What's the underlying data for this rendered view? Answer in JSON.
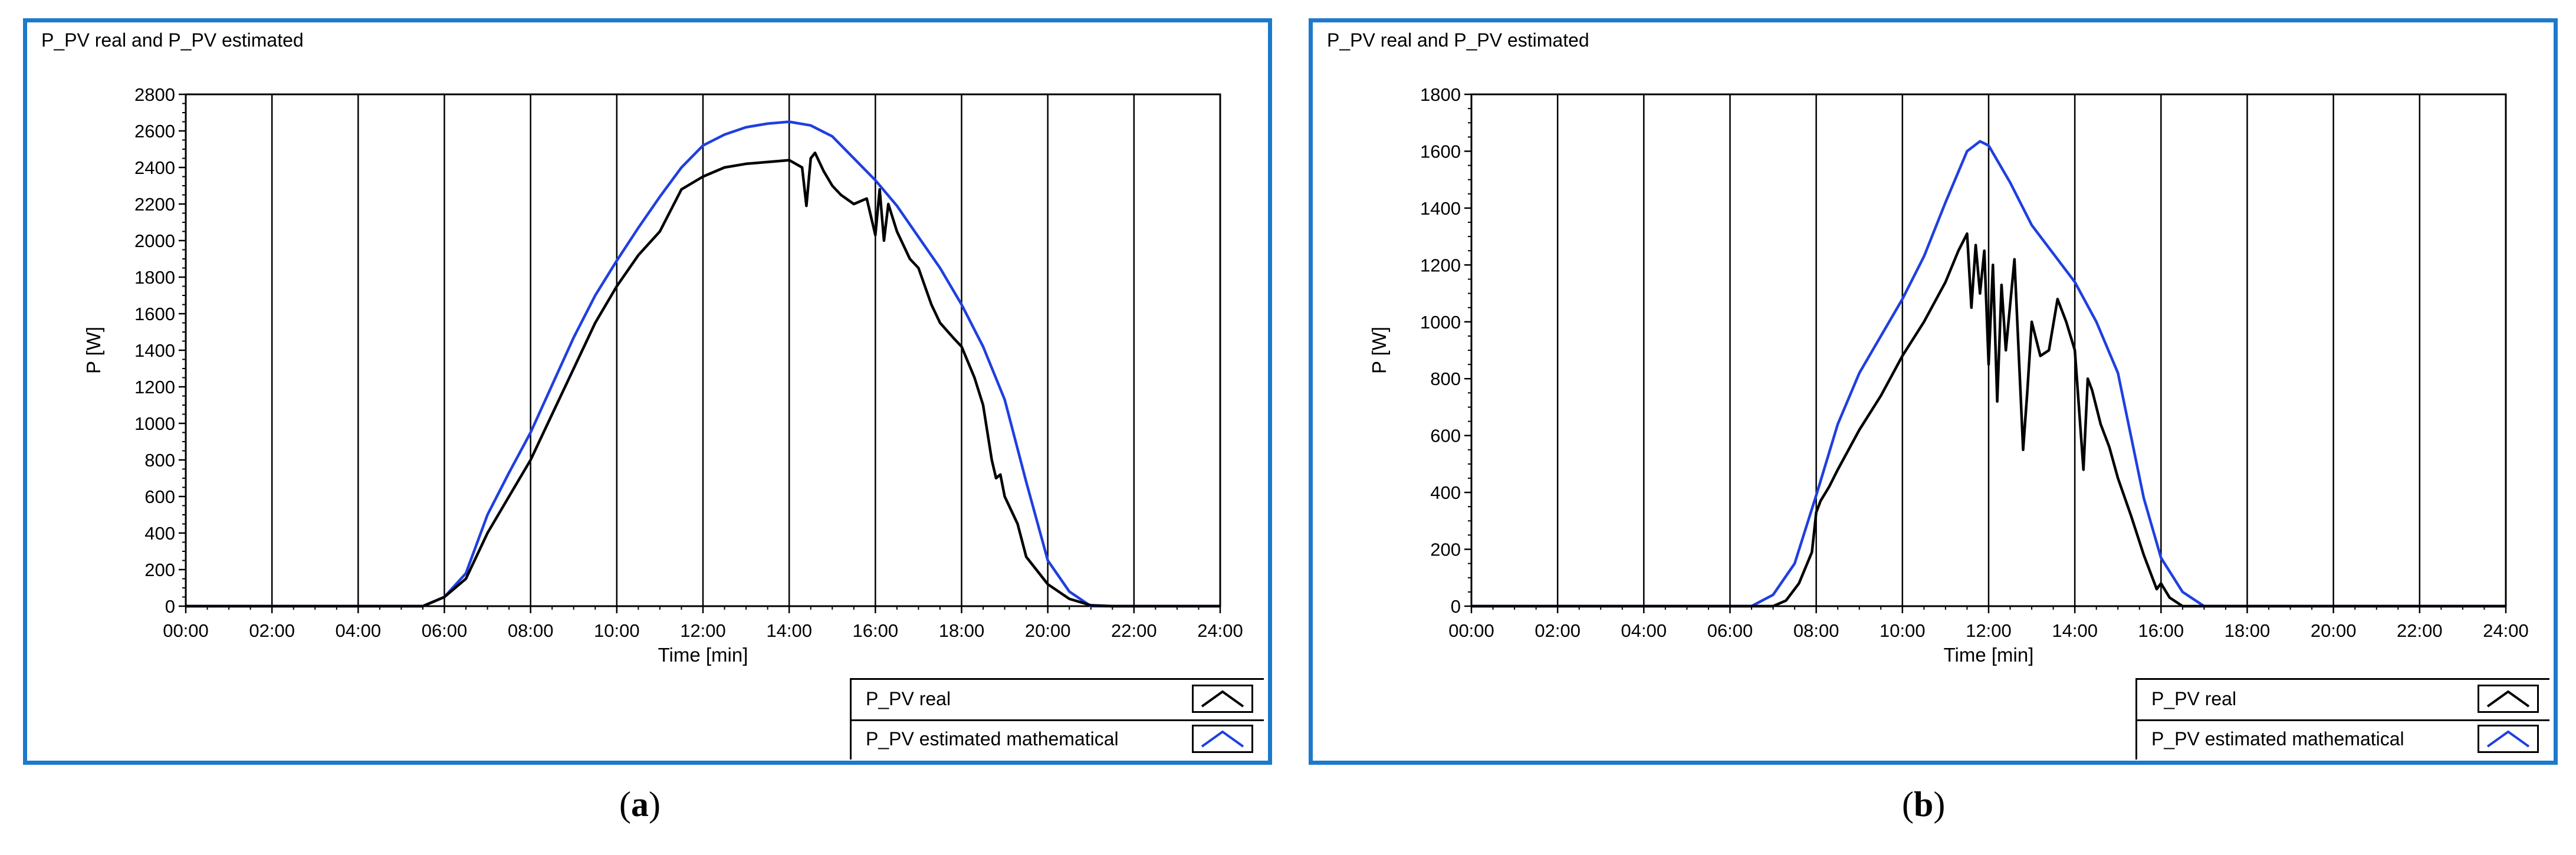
{
  "colors": {
    "frame": "#1c7acb",
    "real": "#000000",
    "estimated": "#1f3fe0",
    "grid": "#000000"
  },
  "chart_data": [
    {
      "id": "a",
      "type": "line",
      "caption_open": "(",
      "caption_letter": "a",
      "caption_close": ")",
      "title": "P_PV real and P_PV estimated",
      "xlabel": "Time [min]",
      "ylabel": "P [W]",
      "xlim": [
        0,
        24
      ],
      "ylim": [
        0,
        2800
      ],
      "x_ticks": [
        "00:00",
        "02:00",
        "04:00",
        "06:00",
        "08:00",
        "10:00",
        "12:00",
        "14:00",
        "16:00",
        "18:00",
        "20:00",
        "22:00",
        "24:00"
      ],
      "y_ticks": [
        "0",
        "200",
        "400",
        "600",
        "800",
        "1000",
        "1200",
        "1400",
        "1600",
        "1800",
        "2000",
        "2200",
        "2400",
        "2600",
        "2800"
      ],
      "grid": "vertical",
      "legend": [
        "P_PV real",
        "P_PV estimated mathematical"
      ],
      "series": [
        {
          "name": "P_PV real",
          "x": [
            0,
            5.5,
            6,
            6.5,
            7,
            7.5,
            8,
            8.5,
            9,
            9.5,
            10,
            10.5,
            11,
            11.5,
            12,
            12.5,
            13,
            13.5,
            14,
            14.3,
            14.4,
            14.5,
            14.6,
            14.8,
            15,
            15.2,
            15.5,
            15.8,
            16,
            16.1,
            16.2,
            16.3,
            16.5,
            16.8,
            17,
            17.3,
            17.5,
            17.8,
            18,
            18.3,
            18.5,
            18.7,
            18.8,
            18.9,
            19,
            19.3,
            19.5,
            20,
            20.5,
            21,
            21.5,
            24
          ],
          "y": [
            0,
            0,
            50,
            150,
            400,
            600,
            800,
            1050,
            1300,
            1550,
            1750,
            1920,
            2050,
            2280,
            2350,
            2400,
            2420,
            2430,
            2440,
            2400,
            2190,
            2450,
            2480,
            2380,
            2300,
            2250,
            2200,
            2230,
            2030,
            2280,
            2000,
            2200,
            2050,
            1900,
            1850,
            1650,
            1550,
            1470,
            1420,
            1250,
            1100,
            800,
            700,
            720,
            600,
            450,
            270,
            120,
            40,
            5,
            0,
            0
          ]
        },
        {
          "name": "P_PV estimated mathematical",
          "x": [
            0,
            5.5,
            6,
            6.5,
            7,
            7.5,
            8,
            8.5,
            9,
            9.5,
            10,
            10.5,
            11,
            11.5,
            12,
            12.5,
            13,
            13.5,
            14,
            14.5,
            15,
            15.5,
            16,
            16.5,
            17,
            17.5,
            18,
            18.5,
            19,
            19.5,
            20,
            20.5,
            21,
            24
          ],
          "y": [
            0,
            0,
            50,
            180,
            500,
            730,
            950,
            1210,
            1470,
            1700,
            1890,
            2070,
            2240,
            2400,
            2520,
            2580,
            2620,
            2640,
            2650,
            2630,
            2570,
            2450,
            2330,
            2190,
            2020,
            1850,
            1650,
            1420,
            1130,
            680,
            250,
            80,
            0,
            0
          ]
        }
      ]
    },
    {
      "id": "b",
      "type": "line",
      "caption_open": "(",
      "caption_letter": "b",
      "caption_close": ")",
      "title": "P_PV real and P_PV estimated",
      "xlabel": "Time [min]",
      "ylabel": "P [W]",
      "xlim": [
        0,
        24
      ],
      "ylim": [
        0,
        1800
      ],
      "x_ticks": [
        "00:00",
        "02:00",
        "04:00",
        "06:00",
        "08:00",
        "10:00",
        "12:00",
        "14:00",
        "16:00",
        "18:00",
        "20:00",
        "22:00",
        "24:00"
      ],
      "y_ticks": [
        "0",
        "200",
        "400",
        "600",
        "800",
        "1000",
        "1200",
        "1400",
        "1600",
        "1800"
      ],
      "grid": "vertical",
      "legend": [
        "P_PV real",
        "P_PV estimated mathematical"
      ],
      "series": [
        {
          "name": "P_PV real",
          "x": [
            0,
            7,
            7.3,
            7.6,
            7.9,
            8.0,
            8.1,
            8.3,
            8.5,
            9,
            9.5,
            10,
            10.5,
            11,
            11.3,
            11.5,
            11.6,
            11.7,
            11.8,
            11.9,
            12.0,
            12.1,
            12.2,
            12.3,
            12.4,
            12.6,
            12.8,
            12.9,
            13.0,
            13.2,
            13.4,
            13.6,
            13.8,
            14,
            14.2,
            14.3,
            14.4,
            14.6,
            14.8,
            15,
            15.3,
            15.6,
            15.9,
            16.0,
            16.2,
            16.5,
            24
          ],
          "y": [
            0,
            0,
            20,
            80,
            190,
            330,
            370,
            420,
            480,
            620,
            740,
            880,
            1000,
            1140,
            1250,
            1310,
            1050,
            1270,
            1100,
            1250,
            850,
            1200,
            720,
            1130,
            900,
            1220,
            550,
            760,
            1000,
            880,
            900,
            1080,
            1000,
            900,
            480,
            800,
            760,
            640,
            560,
            450,
            320,
            180,
            60,
            80,
            30,
            0,
            0
          ]
        },
        {
          "name": "P_PV estimated mathematical",
          "x": [
            0,
            6.5,
            7,
            7.5,
            8,
            8.5,
            9,
            9.5,
            10,
            10.5,
            11,
            11.5,
            11.8,
            12,
            12.5,
            13,
            13.5,
            14,
            14.5,
            15,
            15.3,
            15.6,
            16,
            16.5,
            17,
            17.5,
            24
          ],
          "y": [
            0,
            0,
            40,
            150,
            390,
            640,
            820,
            950,
            1080,
            1230,
            1420,
            1600,
            1635,
            1620,
            1490,
            1340,
            1240,
            1140,
            1000,
            820,
            600,
            380,
            170,
            50,
            0,
            0,
            0
          ]
        }
      ]
    }
  ]
}
